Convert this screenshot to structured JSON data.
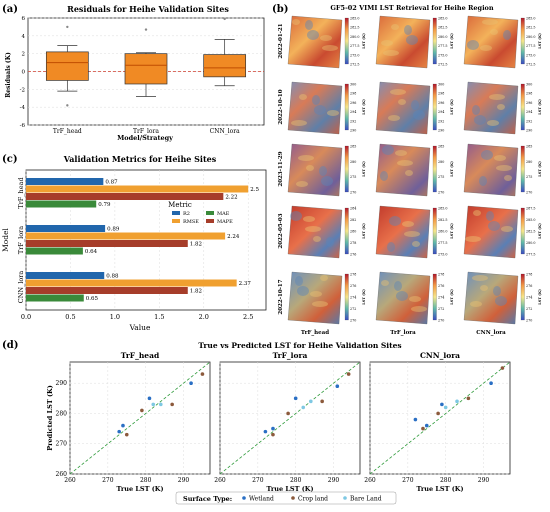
{
  "panels": {
    "a": {
      "letter": "(a)",
      "title": "Residuals for Heihe Validation Sites",
      "ylabel": "Residuals (K)",
      "xlabel": "Model/Strategy",
      "yticks": [
        "-6",
        "-4",
        "-2",
        "0",
        "2",
        "4",
        "6"
      ]
    },
    "b": {
      "letter": "(b)",
      "title": "GF5-02 VIMI LST Retrieval for Heihe Region",
      "dates": [
        "2022-01-21",
        "2022-10-10",
        "2023-11-29",
        "2022-05-03",
        "2022-10-17"
      ],
      "columns": [
        "TrF_head",
        "TrF_lora",
        "CNN_lora"
      ],
      "cbar_label": "LST (K)",
      "cbar_ticks": [
        [
          [
            "285.0",
            "282.5",
            "280.0",
            "277.5",
            "275.0",
            "272.5"
          ],
          [
            "285.0",
            "282.5",
            "280.0",
            "277.5",
            "275.0",
            "272.5"
          ],
          [
            "285.0",
            "282.5",
            "280.0",
            "277.5",
            "275.0",
            "272.5"
          ]
        ],
        [
          [
            "300",
            "298",
            "296",
            "294",
            "292",
            "290"
          ],
          [
            "300",
            "298",
            "296",
            "294",
            "292",
            "290"
          ],
          [
            "300",
            "298",
            "296",
            "294",
            "292",
            "290"
          ]
        ],
        [
          [
            "285",
            "280",
            "275",
            "270"
          ],
          [
            "285",
            "280",
            "275",
            "270"
          ],
          [
            "285",
            "280",
            "275",
            "270"
          ]
        ],
        [
          [
            "284",
            "282",
            "280",
            "278",
            "276"
          ],
          [
            "285.0",
            "282.5",
            "280.0",
            "277.5",
            "275.0"
          ],
          [
            "287.5",
            "285.0",
            "282.5",
            "280.0",
            "277.5"
          ]
        ],
        [
          [
            "278",
            "276",
            "274",
            "272",
            "270"
          ],
          [
            "278",
            "276",
            "274",
            "272",
            "270"
          ],
          [
            "278",
            "276",
            "274",
            "272",
            "270"
          ]
        ]
      ]
    },
    "c": {
      "letter": "(c)",
      "title": "Validation Metrics for Heihe Sites",
      "xlabel": "Value",
      "ylabel": "Model",
      "legend_title": "Metric",
      "legend": [
        "R2",
        "RMSE",
        "MAE",
        "MAPE"
      ],
      "xticks": [
        "0.0",
        "0.5",
        "1.0",
        "1.5",
        "2.0",
        "2.5"
      ]
    },
    "d": {
      "letter": "(d)",
      "title": "True vs Predicted LST for Heihe Validation Sites",
      "subtitles": [
        "TrF_head",
        "TrF_lora",
        "CNN_lora"
      ],
      "xlabel": "True LST (K)",
      "ylabel": "Predicted LST (K)",
      "ticks": [
        "260",
        "270",
        "280",
        "290"
      ],
      "legend_title": "Surface Type:",
      "legend": [
        "Wetland",
        "Crop land",
        "Bare Land"
      ]
    }
  },
  "colors": {
    "box": "#f08a24",
    "median": "#c04d00",
    "R2": "#2166ac",
    "RMSE": "#f0a030",
    "MAE": "#3a8a3a",
    "MAPE": "#a63d2a",
    "wetland": "#2a6fc4",
    "cropland": "#8c5a3c",
    "bareland": "#7ec8e3",
    "diag": "#2e9a3a"
  },
  "chart_data": [
    {
      "type": "box",
      "title": "Residuals for Heihe Validation Sites",
      "xlabel": "Model/Strategy",
      "ylabel": "Residuals (K)",
      "ylim": [
        -6,
        6
      ],
      "categories": [
        "TrF_head",
        "TrF_lora",
        "CNN_lora"
      ],
      "boxes": [
        {
          "min": -2.2,
          "q1": -1.0,
          "median": 1.0,
          "q3": 2.2,
          "max": 2.9,
          "outliers": [
            5.0,
            -3.8
          ]
        },
        {
          "min": -2.8,
          "q1": -1.4,
          "median": 0.7,
          "q3": 2.0,
          "max": 2.1,
          "outliers": [
            4.7
          ]
        },
        {
          "min": -1.6,
          "q1": -0.6,
          "median": 0.4,
          "q3": 1.9,
          "max": 3.6,
          "outliers": [
            5.9
          ]
        }
      ]
    },
    {
      "type": "bar",
      "title": "Validation Metrics for Heihe Sites",
      "xlabel": "Value",
      "ylabel": "Model",
      "orientation": "horizontal",
      "categories": [
        "TrF_head",
        "TrF_lora",
        "CNN_lora"
      ],
      "xlim": [
        0,
        2.7
      ],
      "series": [
        {
          "name": "R2",
          "values": [
            0.87,
            0.89,
            0.88
          ]
        },
        {
          "name": "RMSE",
          "values": [
            2.5,
            2.24,
            2.37
          ]
        },
        {
          "name": "MAE",
          "values": [
            0.79,
            0.64,
            0.65
          ]
        },
        {
          "name": "MAPE",
          "values": [
            2.22,
            1.82,
            1.82
          ]
        }
      ]
    },
    {
      "type": "scatter",
      "title": "True vs Predicted LST for Heihe Validation Sites",
      "xlabel": "True LST (K)",
      "ylabel": "Predicted LST (K)",
      "xlim": [
        260,
        297
      ],
      "ylim": [
        260,
        297
      ],
      "panels": [
        {
          "name": "TrF_head",
          "points": [
            {
              "x": 273,
              "y": 274,
              "type": "Wetland"
            },
            {
              "x": 274,
              "y": 276,
              "type": "Wetland"
            },
            {
              "x": 281,
              "y": 285,
              "type": "Wetland"
            },
            {
              "x": 292,
              "y": 290,
              "type": "Wetland"
            },
            {
              "x": 275,
              "y": 273,
              "type": "Crop land"
            },
            {
              "x": 279,
              "y": 281,
              "type": "Crop land"
            },
            {
              "x": 287,
              "y": 283,
              "type": "Crop land"
            },
            {
              "x": 295,
              "y": 293,
              "type": "Crop land"
            },
            {
              "x": 282,
              "y": 283,
              "type": "Bare Land"
            },
            {
              "x": 284,
              "y": 283,
              "type": "Bare Land"
            }
          ]
        },
        {
          "name": "TrF_lora",
          "points": [
            {
              "x": 272,
              "y": 274,
              "type": "Wetland"
            },
            {
              "x": 274,
              "y": 275,
              "type": "Wetland"
            },
            {
              "x": 280,
              "y": 285,
              "type": "Wetland"
            },
            {
              "x": 291,
              "y": 289,
              "type": "Wetland"
            },
            {
              "x": 274,
              "y": 273,
              "type": "Crop land"
            },
            {
              "x": 278,
              "y": 280,
              "type": "Crop land"
            },
            {
              "x": 287,
              "y": 284,
              "type": "Crop land"
            },
            {
              "x": 294,
              "y": 293,
              "type": "Crop land"
            },
            {
              "x": 282,
              "y": 282,
              "type": "Bare Land"
            },
            {
              "x": 284,
              "y": 284,
              "type": "Bare Land"
            }
          ]
        },
        {
          "name": "CNN_lora",
          "points": [
            {
              "x": 272,
              "y": 278,
              "type": "Wetland"
            },
            {
              "x": 275,
              "y": 276,
              "type": "Wetland"
            },
            {
              "x": 279,
              "y": 283,
              "type": "Wetland"
            },
            {
              "x": 292,
              "y": 290,
              "type": "Wetland"
            },
            {
              "x": 274,
              "y": 275,
              "type": "Crop land"
            },
            {
              "x": 278,
              "y": 280,
              "type": "Crop land"
            },
            {
              "x": 286,
              "y": 285,
              "type": "Crop land"
            },
            {
              "x": 295,
              "y": 295,
              "type": "Crop land"
            },
            {
              "x": 280,
              "y": 282,
              "type": "Bare Land"
            },
            {
              "x": 283,
              "y": 284,
              "type": "Bare Land"
            }
          ]
        }
      ]
    }
  ]
}
